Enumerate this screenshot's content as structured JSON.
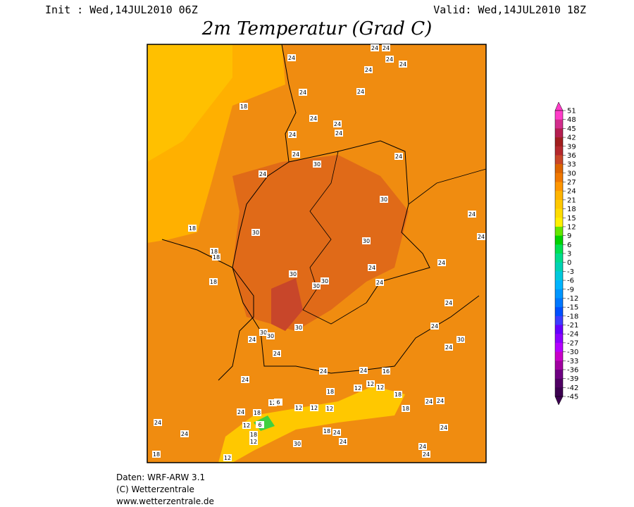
{
  "header": {
    "init": "Init : Wed,14JUL2010 06Z",
    "valid": "Valid: Wed,14JUL2010 18Z",
    "title": "2m Temperatur (Grad C)"
  },
  "legend": {
    "levels": [
      51,
      48,
      45,
      42,
      39,
      36,
      33,
      30,
      27,
      24,
      21,
      18,
      15,
      12,
      9,
      6,
      3,
      0,
      -3,
      -6,
      -9,
      -12,
      -15,
      -18,
      -21,
      -24,
      -27,
      -30,
      -33,
      -36,
      -39,
      -42,
      -45
    ],
    "colors": [
      "#ff3cc8",
      "#d22d8c",
      "#b41e50",
      "#a01e1e",
      "#b4282d",
      "#c84628",
      "#dc6400",
      "#f07800",
      "#ff9600",
      "#ffb400",
      "#ffc800",
      "#ffdc00",
      "#fff000",
      "#64e600",
      "#00d200",
      "#00e050",
      "#00dc8c",
      "#00d2b4",
      "#00c8dc",
      "#00b4ff",
      "#0096ff",
      "#0078ff",
      "#0050ff",
      "#3c3cff",
      "#6400ff",
      "#8c00ff",
      "#b400ff",
      "#c800c8",
      "#a000a0",
      "#6e0082",
      "#500064",
      "#3c0050"
    ]
  },
  "map": {
    "labels": [
      24,
      24,
      24,
      24,
      24,
      24,
      24,
      24,
      18,
      24,
      24,
      24,
      24,
      24,
      30,
      24,
      24,
      30,
      24,
      18,
      30,
      24,
      30,
      18,
      18,
      24,
      24,
      30,
      30,
      30,
      18,
      24,
      24,
      30,
      30,
      30,
      24,
      24,
      30,
      24,
      24,
      24,
      24,
      16,
      24,
      12,
      12,
      12,
      18,
      18,
      12,
      6,
      18,
      24,
      18,
      24,
      24,
      12,
      12,
      12,
      12,
      6,
      24,
      24,
      18,
      18,
      24,
      24,
      12,
      24,
      30,
      24,
      24,
      18,
      12
    ]
  },
  "footer": {
    "lines": [
      "Daten: WRF-ARW 3.1",
      "(C) Wetterzentrale",
      "www.wetterzentrale.de"
    ]
  }
}
